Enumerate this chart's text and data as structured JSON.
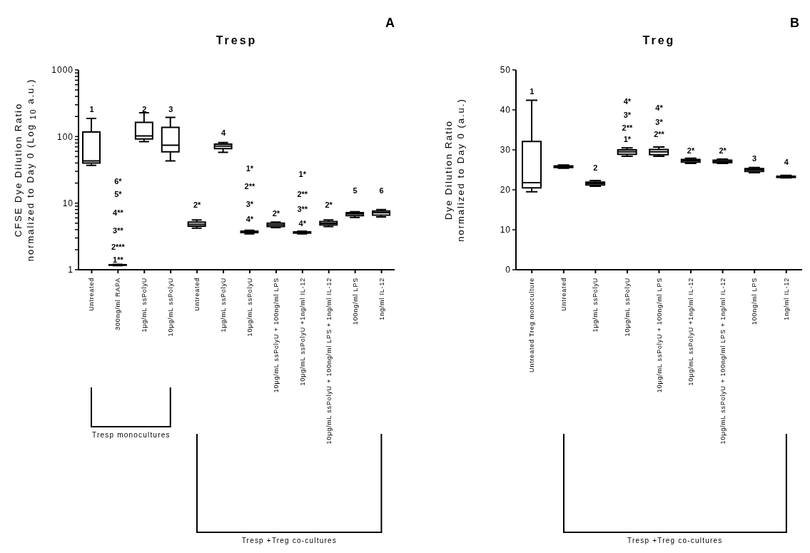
{
  "chart_data": [
    {
      "type": "box",
      "title": "Tresp",
      "ylabel": "CFSE Dye Dilution Ratio\nnormalized to Day 0 (Log $_{10}$ a.u.)",
      "log": "y",
      "ylim": [
        1,
        1000
      ],
      "yticks": [
        1,
        {
          "value": 2,
          "label": null
        },
        {
          "value": 3,
          "label": null
        },
        {
          "value": 4,
          "label": null
        },
        {
          "value": 5,
          "label": null
        },
        {
          "value": 6,
          "label": null
        },
        {
          "value": 7,
          "label": null
        },
        {
          "value": 8,
          "label": null
        },
        {
          "value": 9,
          "label": null
        },
        10,
        {
          "value": 20,
          "label": null
        },
        {
          "value": 30,
          "label": null
        },
        {
          "value": 40,
          "label": null
        },
        {
          "value": 50,
          "label": null
        },
        {
          "value": 60,
          "label": null
        },
        {
          "value": 70,
          "label": null
        },
        {
          "value": 80,
          "label": null
        },
        {
          "value": 90,
          "label": null
        },
        100,
        {
          "value": 200,
          "label": null
        },
        {
          "value": 300,
          "label": null
        },
        {
          "value": 400,
          "label": null
        },
        {
          "value": 500,
          "label": null
        },
        {
          "value": 600,
          "label": null
        },
        {
          "value": 700,
          "label": null
        },
        {
          "value": 800,
          "label": null
        },
        {
          "value": 900,
          "label": null
        },
        1000
      ],
      "categories": [
        "Untreated",
        "300ng/ml RAPA",
        "1μg/mL ssPolyU",
        "10μg/mL ssPolyU",
        "Untreated",
        "1μg/mL ssPolyU",
        "10μg/mL ssPolyU",
        "10μg/mL ssPolyU + 100ng/ml LPS",
        "10μg/mL ssPolyU +1ng/ml IL-12",
        "10μg/mL ssPolyU + 100ng/ml LPS + 1ng/ml IL-12",
        "100ng/ml LPS",
        "1ng/ml IL-12"
      ],
      "boxes": [
        {
          "low": 37,
          "q1": 40,
          "median": 43,
          "q3": 117,
          "high": 187
        },
        {
          "low": 1.15,
          "q1": 1.17,
          "median": 1.18,
          "q3": 1.19,
          "high": 1.2
        },
        {
          "low": 84,
          "q1": 92,
          "median": 102,
          "q3": 163,
          "high": 227
        },
        {
          "low": 43,
          "q1": 59,
          "median": 74,
          "q3": 137,
          "high": 194
        },
        {
          "low": 4.2,
          "q1": 4.5,
          "median": 4.8,
          "q3": 5.2,
          "high": 5.6
        },
        {
          "low": 58,
          "q1": 66,
          "median": 72,
          "q3": 77,
          "high": 81
        },
        {
          "low": 3.45,
          "q1": 3.6,
          "median": 3.7,
          "q3": 3.8,
          "high": 3.9
        },
        {
          "low": 4.3,
          "q1": 4.45,
          "median": 4.7,
          "q3": 5.0,
          "high": 5.2
        },
        {
          "low": 3.45,
          "q1": 3.55,
          "median": 3.6,
          "q3": 3.7,
          "high": 3.8
        },
        {
          "low": 4.45,
          "q1": 4.7,
          "median": 4.97,
          "q3": 5.3,
          "high": 5.6
        },
        {
          "low": 6.1,
          "q1": 6.5,
          "median": 6.9,
          "q3": 7.2,
          "high": 7.4
        },
        {
          "low": 6.2,
          "q1": 6.6,
          "median": 7.2,
          "q3": 7.6,
          "high": 8.0
        }
      ],
      "annotations": [
        "A",
        "Tresp monocultures",
        "Tresp +Treg co-cultures",
        "1",
        "6*",
        "5*",
        "4**",
        "3**",
        "2***",
        "1**",
        "2",
        "3",
        "2*",
        "4",
        "1*",
        "2**",
        "3*",
        "4*",
        "2*",
        "1*",
        "2**",
        "3**",
        "4*",
        "2*",
        "5",
        "6"
      ]
    },
    {
      "type": "box",
      "title": "Treg",
      "ylabel": "Dye Dilution Ratio\nnormalized to Day 0 (a.u.)",
      "ylim": [
        0,
        50
      ],
      "yticks": [
        0,
        10,
        20,
        30,
        40,
        50
      ],
      "categories": [
        "Untreated Treg monoculture",
        "Untreated",
        "1μg/mL ssPolyU",
        "10μg/mL ssPolyU",
        "10μg/mL ssPolyU + 100ng/ml LPS",
        "10μg/mL ssPolyU +1ng/ml IL-12",
        "10μg/mL ssPolyU + 100ng/ml LPS + 1ng/ml IL-12",
        "100ng/ml LPS",
        "1ng/ml IL-12"
      ],
      "boxes": [
        {
          "low": 19.5,
          "q1": 20.5,
          "median": 21.8,
          "q3": 32.1,
          "high": 42.4
        },
        {
          "low": 25.4,
          "q1": 25.6,
          "median": 25.8,
          "q3": 26.0,
          "high": 26.2
        },
        {
          "low": 20.9,
          "q1": 21.2,
          "median": 21.6,
          "q3": 21.9,
          "high": 22.3
        },
        {
          "low": 28.4,
          "q1": 28.9,
          "median": 29.5,
          "q3": 30.0,
          "high": 30.5
        },
        {
          "low": 28.4,
          "q1": 28.8,
          "median": 29.5,
          "q3": 30.1,
          "high": 30.7
        },
        {
          "low": 26.6,
          "q1": 26.9,
          "median": 27.3,
          "q3": 27.6,
          "high": 27.9
        },
        {
          "low": 26.6,
          "q1": 26.8,
          "median": 27.1,
          "q3": 27.4,
          "high": 27.7
        },
        {
          "low": 24.3,
          "q1": 24.6,
          "median": 25.0,
          "q3": 25.3,
          "high": 25.6
        },
        {
          "low": 23.0,
          "q1": 23.1,
          "median": 23.2,
          "q3": 23.4,
          "high": 23.6
        }
      ],
      "annotations": [
        "B",
        "Tresp +Treg co-cultures",
        "1",
        "2",
        "4*",
        "3*",
        "2**",
        "1*",
        "4*",
        "3*",
        "2**",
        "2*",
        "2*",
        "3",
        "4"
      ]
    }
  ]
}
